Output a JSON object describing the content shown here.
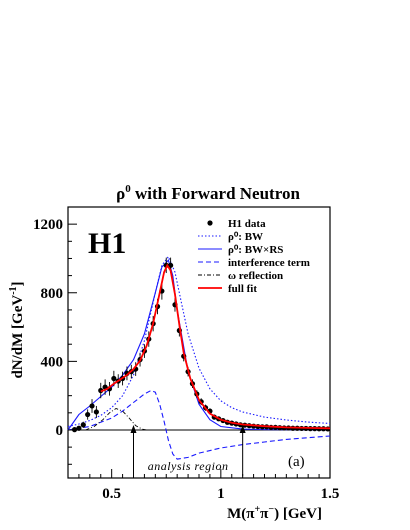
{
  "chart_data": {
    "type": "line",
    "title": "ρ⁰ with Forward Neutron",
    "title_parts": {
      "base": "ρ",
      "sup": "0",
      "rest": " with Forward Neutron"
    },
    "watermark": "H1",
    "panel_label": "(a)",
    "xlabel": "M(π⁺π⁻) [GeV]",
    "xlabel_parts": [
      "M(π",
      "+",
      "π",
      "−",
      ") [GeV]"
    ],
    "ylabel": "dN/dM [GeV⁻¹]",
    "ylabel_parts": [
      "dN/dM [GeV",
      "-1",
      "]"
    ],
    "xlim": [
      0.3,
      1.5
    ],
    "ylim": [
      -280,
      1300
    ],
    "x_ticks": [
      {
        "value": 0.5,
        "label": "0.5"
      },
      {
        "value": 1.0,
        "label": "1"
      },
      {
        "value": 1.5,
        "label": "1.5"
      }
    ],
    "y_ticks": [
      {
        "value": 0,
        "label": "0"
      },
      {
        "value": 400,
        "label": "400"
      },
      {
        "value": 800,
        "label": "800"
      },
      {
        "value": 1200,
        "label": "1200"
      }
    ],
    "analysis_region": {
      "label": "analysis region",
      "x_min": 0.6,
      "x_max": 1.1
    },
    "legend": {
      "position": "top-right",
      "entries": [
        {
          "label": "H1 data",
          "style": "marker",
          "color": "#000000"
        },
        {
          "label": "ρ⁰: BW",
          "style": "dotted",
          "color": "#1a1aff"
        },
        {
          "label": "ρ⁰: BW×RS",
          "style": "solid",
          "color": "#1a1aff"
        },
        {
          "label": "interference term",
          "style": "dashed",
          "color": "#1a1aff"
        },
        {
          "label": "ω reflection",
          "style": "dashdot",
          "color": "#000000"
        },
        {
          "label": "full fit",
          "style": "solid",
          "color": "#ff0000"
        }
      ]
    },
    "series": [
      {
        "name": "H1 data",
        "style": "marker",
        "points": [
          [
            0.33,
            2
          ],
          [
            0.35,
            10
          ],
          [
            0.37,
            30
          ],
          [
            0.39,
            90
          ],
          [
            0.41,
            140
          ],
          [
            0.43,
            105
          ],
          [
            0.45,
            230
          ],
          [
            0.47,
            250
          ],
          [
            0.49,
            240
          ],
          [
            0.51,
            300
          ],
          [
            0.53,
            285
          ],
          [
            0.55,
            300
          ],
          [
            0.57,
            330
          ],
          [
            0.59,
            340
          ],
          [
            0.61,
            355
          ],
          [
            0.63,
            410
          ],
          [
            0.65,
            460
          ],
          [
            0.67,
            530
          ],
          [
            0.69,
            620
          ],
          [
            0.71,
            720
          ],
          [
            0.73,
            810
          ],
          [
            0.75,
            960
          ],
          [
            0.77,
            960
          ],
          [
            0.79,
            730
          ],
          [
            0.81,
            580
          ],
          [
            0.83,
            430
          ],
          [
            0.85,
            340
          ],
          [
            0.87,
            270
          ],
          [
            0.89,
            210
          ],
          [
            0.91,
            165
          ],
          [
            0.93,
            130
          ],
          [
            0.95,
            110
          ],
          [
            0.97,
            75
          ],
          [
            0.99,
            65
          ],
          [
            1.01,
            55
          ],
          [
            1.03,
            45
          ],
          [
            1.05,
            40
          ],
          [
            1.07,
            35
          ],
          [
            1.09,
            30
          ],
          [
            1.11,
            28
          ],
          [
            1.13,
            25
          ],
          [
            1.15,
            22
          ],
          [
            1.17,
            20
          ],
          [
            1.19,
            18
          ],
          [
            1.21,
            18
          ],
          [
            1.23,
            15
          ],
          [
            1.25,
            15
          ],
          [
            1.27,
            13
          ],
          [
            1.29,
            12
          ],
          [
            1.31,
            12
          ],
          [
            1.33,
            10
          ],
          [
            1.35,
            10
          ],
          [
            1.37,
            9
          ],
          [
            1.39,
            9
          ],
          [
            1.41,
            8
          ],
          [
            1.43,
            8
          ],
          [
            1.45,
            7
          ],
          [
            1.47,
            7
          ],
          [
            1.49,
            6
          ]
        ],
        "errors": [
          0,
          10,
          18,
          30,
          40,
          35,
          45,
          45,
          40,
          45,
          40,
          40,
          40,
          40,
          40,
          40,
          40,
          45,
          45,
          45,
          50,
          45,
          45,
          40,
          35,
          30,
          28,
          25,
          22,
          20,
          18,
          16,
          14,
          12,
          10,
          10,
          10,
          8,
          8,
          8,
          8,
          7,
          7,
          7,
          7,
          6,
          6,
          6,
          6,
          6,
          6,
          6,
          6,
          6,
          6,
          6,
          6,
          6,
          6
        ]
      },
      {
        "name": "ρ⁰: BW",
        "style": "dotted",
        "points": [
          [
            0.3,
            20
          ],
          [
            0.35,
            35
          ],
          [
            0.4,
            55
          ],
          [
            0.45,
            85
          ],
          [
            0.5,
            130
          ],
          [
            0.55,
            200
          ],
          [
            0.6,
            320
          ],
          [
            0.65,
            520
          ],
          [
            0.7,
            800
          ],
          [
            0.73,
            960
          ],
          [
            0.76,
            1010
          ],
          [
            0.79,
            920
          ],
          [
            0.82,
            740
          ],
          [
            0.85,
            560
          ],
          [
            0.9,
            360
          ],
          [
            0.95,
            240
          ],
          [
            1.0,
            170
          ],
          [
            1.05,
            130
          ],
          [
            1.1,
            105
          ],
          [
            1.2,
            75
          ],
          [
            1.3,
            58
          ],
          [
            1.4,
            46
          ],
          [
            1.5,
            38
          ]
        ]
      },
      {
        "name": "ρ⁰: BW×RS",
        "style": "solid",
        "points": [
          [
            0.3,
            0
          ],
          [
            0.35,
            90
          ],
          [
            0.4,
            140
          ],
          [
            0.45,
            195
          ],
          [
            0.5,
            250
          ],
          [
            0.55,
            320
          ],
          [
            0.6,
            410
          ],
          [
            0.65,
            560
          ],
          [
            0.7,
            800
          ],
          [
            0.73,
            950
          ],
          [
            0.76,
            990
          ],
          [
            0.78,
            900
          ],
          [
            0.8,
            700
          ],
          [
            0.85,
            340
          ],
          [
            0.9,
            150
          ],
          [
            0.95,
            60
          ],
          [
            1.0,
            20
          ],
          [
            1.1,
            5
          ],
          [
            1.2,
            2
          ],
          [
            1.5,
            0
          ]
        ]
      },
      {
        "name": "interference term",
        "style": "dashed",
        "points": [
          [
            0.3,
            0
          ],
          [
            0.4,
            20
          ],
          [
            0.5,
            70
          ],
          [
            0.55,
            110
          ],
          [
            0.6,
            160
          ],
          [
            0.65,
            210
          ],
          [
            0.68,
            230
          ],
          [
            0.7,
            220
          ],
          [
            0.72,
            150
          ],
          [
            0.74,
            50
          ],
          [
            0.76,
            -60
          ],
          [
            0.78,
            -140
          ],
          [
            0.8,
            -170
          ],
          [
            0.85,
            -160
          ],
          [
            0.9,
            -135
          ],
          [
            1.0,
            -105
          ],
          [
            1.1,
            -85
          ],
          [
            1.2,
            -70
          ],
          [
            1.3,
            -55
          ],
          [
            1.4,
            -45
          ],
          [
            1.5,
            -35
          ]
        ]
      },
      {
        "name": "ω reflection",
        "style": "dashdot",
        "points": [
          [
            0.38,
            0
          ],
          [
            0.42,
            20
          ],
          [
            0.46,
            60
          ],
          [
            0.49,
            100
          ],
          [
            0.52,
            125
          ],
          [
            0.55,
            110
          ],
          [
            0.58,
            70
          ],
          [
            0.61,
            25
          ],
          [
            0.64,
            5
          ],
          [
            0.66,
            0
          ]
        ]
      },
      {
        "name": "full fit",
        "style": "solid",
        "points": [
          [
            0.45,
            225
          ],
          [
            0.48,
            240
          ],
          [
            0.51,
            270
          ],
          [
            0.54,
            295
          ],
          [
            0.57,
            320
          ],
          [
            0.6,
            355
          ],
          [
            0.63,
            405
          ],
          [
            0.66,
            490
          ],
          [
            0.69,
            620
          ],
          [
            0.72,
            800
          ],
          [
            0.74,
            920
          ],
          [
            0.755,
            960
          ],
          [
            0.77,
            930
          ],
          [
            0.79,
            790
          ],
          [
            0.81,
            610
          ],
          [
            0.83,
            450
          ],
          [
            0.86,
            300
          ],
          [
            0.9,
            175
          ],
          [
            0.95,
            95
          ],
          [
            1.0,
            60
          ],
          [
            1.05,
            42
          ],
          [
            1.1,
            32
          ],
          [
            1.2,
            22
          ],
          [
            1.3,
            15
          ],
          [
            1.4,
            12
          ],
          [
            1.5,
            10
          ]
        ]
      }
    ]
  }
}
